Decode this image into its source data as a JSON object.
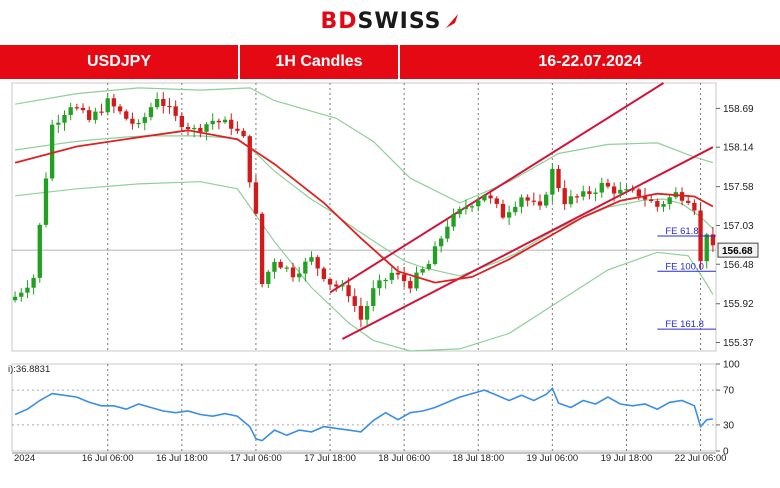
{
  "logo": {
    "bd": "BD",
    "rest": "SWISS"
  },
  "banner": {
    "symbol": "USDJPY",
    "timeframe": "1H Candles",
    "period": "16-22.07.2024"
  },
  "colors": {
    "brand": "#e50914",
    "candle_up": "#22a022",
    "candle_down": "#d11a1a",
    "ma": "#e02020",
    "bollinger": "#8fcf9a",
    "channel": "#d2143c",
    "rsi": "#3a8ee6",
    "fib": "#2a2ad0"
  },
  "chart_data": [
    {
      "type": "candlestick",
      "price_axis_ticks": [
        158.69,
        158.14,
        157.58,
        157.03,
        156.48,
        155.92,
        155.37
      ],
      "ylim": [
        155.25,
        159.05
      ],
      "current_price_label": "156.68",
      "x_tick_labels": [
        "2024",
        "16 Jul 06:00",
        "16 Jul 18:00",
        "17 Jul 06:00",
        "17 Jul 18:00",
        "18 Jul 06:00",
        "18 Jul 18:00",
        "19 Jul 06:00",
        "19 Jul 18:00",
        "22 Jul 06:00"
      ],
      "x_tick_index": [
        0,
        15,
        27,
        39,
        51,
        63,
        75,
        87,
        99,
        111
      ],
      "candle_count": 114,
      "close_path": [
        [
          0,
          156.02
        ],
        [
          3,
          156.3
        ],
        [
          6,
          158.45
        ],
        [
          9,
          158.75
        ],
        [
          12,
          158.52
        ],
        [
          15,
          158.78
        ],
        [
          18,
          158.55
        ],
        [
          20,
          158.42
        ],
        [
          23,
          158.86
        ],
        [
          26,
          158.55
        ],
        [
          29,
          158.38
        ],
        [
          32,
          158.52
        ],
        [
          35,
          158.45
        ],
        [
          37,
          158.25
        ],
        [
          39,
          157.15
        ],
        [
          40,
          156.2
        ],
        [
          42,
          156.55
        ],
        [
          45,
          156.35
        ],
        [
          48,
          156.55
        ],
        [
          51,
          156.22
        ],
        [
          54,
          156.08
        ],
        [
          56,
          155.7
        ],
        [
          58,
          156.1
        ],
        [
          61,
          156.35
        ],
        [
          64,
          156.2
        ],
        [
          67,
          156.48
        ],
        [
          70,
          157.05
        ],
        [
          73,
          157.3
        ],
        [
          76,
          157.48
        ],
        [
          79,
          157.18
        ],
        [
          82,
          157.45
        ],
        [
          85,
          157.25
        ],
        [
          87,
          157.8
        ],
        [
          89,
          157.38
        ],
        [
          92,
          157.45
        ],
        [
          95,
          157.6
        ],
        [
          98,
          157.5
        ],
        [
          101,
          157.48
        ],
        [
          104,
          157.3
        ],
        [
          107,
          157.48
        ],
        [
          109,
          157.42
        ],
        [
          110,
          157.3
        ],
        [
          111,
          156.5
        ],
        [
          112,
          156.95
        ],
        [
          113,
          156.68
        ]
      ],
      "moving_average": [
        [
          0,
          157.92
        ],
        [
          10,
          158.15
        ],
        [
          20,
          158.28
        ],
        [
          28,
          158.38
        ],
        [
          36,
          158.25
        ],
        [
          42,
          157.9
        ],
        [
          50,
          157.35
        ],
        [
          56,
          156.85
        ],
        [
          62,
          156.38
        ],
        [
          68,
          156.22
        ],
        [
          74,
          156.3
        ],
        [
          80,
          156.55
        ],
        [
          86,
          156.85
        ],
        [
          92,
          157.15
        ],
        [
          98,
          157.38
        ],
        [
          104,
          157.48
        ],
        [
          110,
          157.44
        ],
        [
          113,
          157.3
        ]
      ],
      "bollinger_upper": [
        [
          0,
          158.75
        ],
        [
          10,
          158.9
        ],
        [
          20,
          158.98
        ],
        [
          30,
          158.95
        ],
        [
          38,
          158.98
        ],
        [
          42,
          158.8
        ],
        [
          52,
          158.55
        ],
        [
          58,
          158.22
        ],
        [
          64,
          157.7
        ],
        [
          72,
          157.35
        ],
        [
          80,
          157.65
        ],
        [
          88,
          158.05
        ],
        [
          96,
          158.18
        ],
        [
          104,
          158.2
        ],
        [
          110,
          158.0
        ],
        [
          113,
          157.92
        ]
      ],
      "bollinger_lower": [
        [
          0,
          157.45
        ],
        [
          10,
          157.55
        ],
        [
          20,
          157.62
        ],
        [
          30,
          157.65
        ],
        [
          36,
          157.55
        ],
        [
          42,
          156.8
        ],
        [
          48,
          156.15
        ],
        [
          54,
          155.65
        ],
        [
          58,
          155.4
        ],
        [
          64,
          155.25
        ],
        [
          72,
          155.28
        ],
        [
          80,
          155.5
        ],
        [
          88,
          155.95
        ],
        [
          96,
          156.4
        ],
        [
          104,
          156.65
        ],
        [
          109,
          156.6
        ],
        [
          112,
          156.2
        ],
        [
          113,
          156.05
        ]
      ],
      "channel_upper": [
        [
          51,
          156.08
        ],
        [
          105,
          159.05
        ]
      ],
      "channel_lower": [
        [
          53,
          155.42
        ],
        [
          113,
          158.14
        ]
      ],
      "fibonacci_levels": [
        {
          "label": "FE 61.8",
          "value": 156.88
        },
        {
          "label": "FE 100.0",
          "value": 156.38
        },
        {
          "label": "FE 161.8",
          "value": 155.56
        }
      ]
    },
    {
      "type": "line",
      "indicator_label": "i):36.8831",
      "yticks": [
        100,
        70,
        30,
        0
      ],
      "ylim": [
        0,
        100
      ],
      "values": [
        [
          0,
          42
        ],
        [
          2,
          48
        ],
        [
          4,
          58
        ],
        [
          6,
          66
        ],
        [
          8,
          64
        ],
        [
          10,
          62
        ],
        [
          12,
          56
        ],
        [
          14,
          52
        ],
        [
          16,
          52
        ],
        [
          18,
          48
        ],
        [
          20,
          54
        ],
        [
          22,
          50
        ],
        [
          24,
          46
        ],
        [
          26,
          44
        ],
        [
          28,
          46
        ],
        [
          30,
          42
        ],
        [
          32,
          40
        ],
        [
          34,
          43
        ],
        [
          36,
          40
        ],
        [
          38,
          28
        ],
        [
          39,
          14
        ],
        [
          40,
          12
        ],
        [
          42,
          24
        ],
        [
          44,
          18
        ],
        [
          46,
          24
        ],
        [
          48,
          22
        ],
        [
          50,
          28
        ],
        [
          52,
          26
        ],
        [
          54,
          24
        ],
        [
          56,
          22
        ],
        [
          58,
          35
        ],
        [
          60,
          44
        ],
        [
          62,
          36
        ],
        [
          64,
          44
        ],
        [
          66,
          46
        ],
        [
          68,
          50
        ],
        [
          70,
          56
        ],
        [
          72,
          62
        ],
        [
          74,
          66
        ],
        [
          76,
          70
        ],
        [
          78,
          64
        ],
        [
          80,
          58
        ],
        [
          82,
          64
        ],
        [
          84,
          58
        ],
        [
          86,
          65
        ],
        [
          87,
          72
        ],
        [
          88,
          55
        ],
        [
          90,
          50
        ],
        [
          92,
          58
        ],
        [
          94,
          54
        ],
        [
          96,
          62
        ],
        [
          98,
          54
        ],
        [
          100,
          52
        ],
        [
          102,
          54
        ],
        [
          104,
          48
        ],
        [
          106,
          56
        ],
        [
          108,
          58
        ],
        [
          110,
          52
        ],
        [
          111,
          28
        ],
        [
          112,
          36
        ],
        [
          113,
          36.9
        ]
      ]
    }
  ]
}
